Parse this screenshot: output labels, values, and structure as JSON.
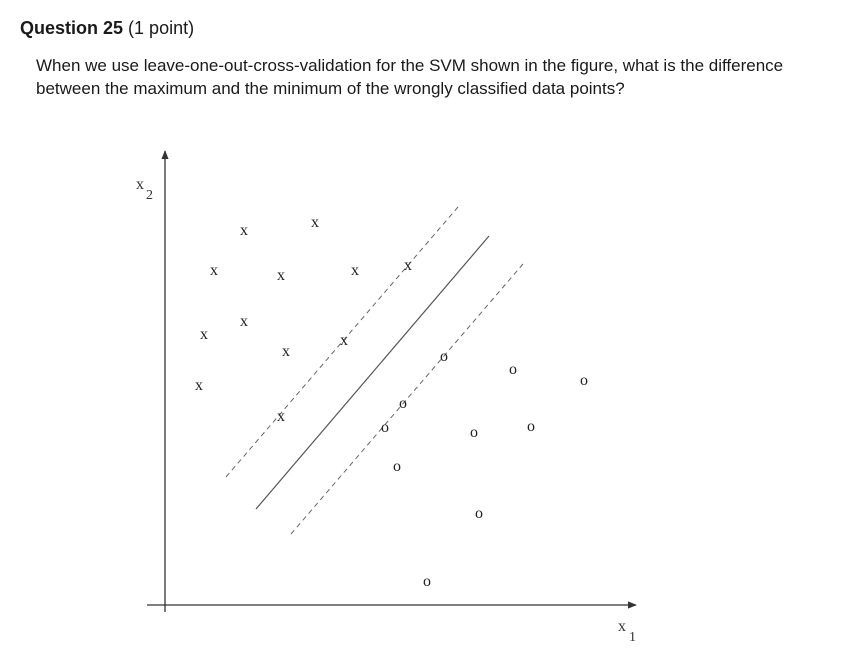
{
  "question": {
    "title": "Question 25",
    "points": "(1 point)",
    "prompt": "When we use leave-one-out-cross-validation for the SVM shown in the figure, what is the difference between the maximum and the minimum of the wrongly classified data points?"
  },
  "figure": {
    "x_axis_label": "x",
    "x_axis_subscript": "1",
    "y_axis_label": "x",
    "y_axis_subscript": "2",
    "class_x_marker": "x",
    "class_o_marker": "o"
  }
}
